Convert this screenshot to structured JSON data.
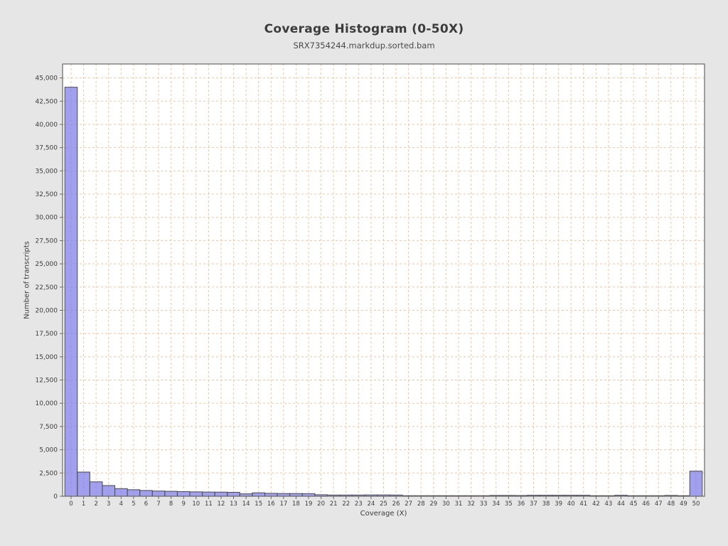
{
  "page": {
    "background": "#e6e6e6"
  },
  "chart_data": {
    "type": "bar",
    "title": "Coverage Histogram (0-50X)",
    "subtitle": "SRX7354244.markdup.sorted.bam",
    "xlabel": "Coverage (X)",
    "ylabel": "Number of transcripts",
    "x": [
      0,
      1,
      2,
      3,
      4,
      5,
      6,
      7,
      8,
      9,
      10,
      11,
      12,
      13,
      14,
      15,
      16,
      17,
      18,
      19,
      20,
      21,
      22,
      23,
      24,
      25,
      26,
      27,
      28,
      29,
      30,
      31,
      32,
      33,
      34,
      35,
      36,
      37,
      38,
      39,
      40,
      41,
      42,
      43,
      44,
      45,
      46,
      47,
      48,
      49,
      50
    ],
    "values": [
      44000,
      2600,
      1550,
      1150,
      820,
      700,
      620,
      560,
      530,
      500,
      470,
      450,
      440,
      420,
      260,
      370,
      310,
      290,
      290,
      280,
      160,
      130,
      130,
      130,
      140,
      140,
      130,
      60,
      60,
      60,
      60,
      60,
      60,
      60,
      90,
      90,
      80,
      110,
      110,
      110,
      110,
      110,
      40,
      40,
      110,
      40,
      40,
      40,
      90,
      60,
      2700
    ],
    "xlim": [
      0,
      50
    ],
    "ylim": [
      0,
      46500
    ],
    "ytick_step": 2500,
    "ytick_label_max": 45000,
    "grid": true,
    "legend": "none",
    "bar_style": "contiguous-histogram"
  },
  "colors": {
    "background": "#e6e6e6",
    "plot_background": "#ffffff",
    "grid": "#f2c5a0",
    "bar_fill": "#7b7be8",
    "bar_border": "#4a4a4a",
    "frame": "#666666",
    "tick_mark": "#666666",
    "tick_text": "#3c3c3c",
    "title_text": "#3c3c3c",
    "subtitle_text": "#4a4a4a"
  }
}
